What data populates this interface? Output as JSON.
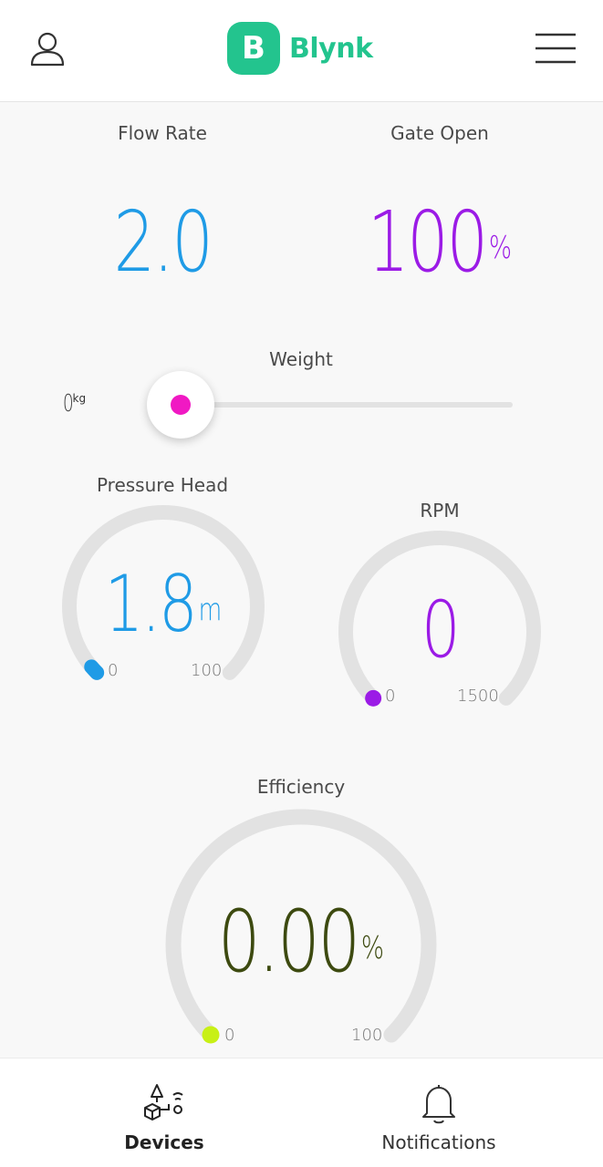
{
  "header": {
    "brand_letter": "B",
    "brand_name": "Blynk",
    "brand_color": "#23c48e",
    "profile_icon": "user-icon",
    "menu_icon": "hamburger-menu-icon"
  },
  "widgets": {
    "flow_rate": {
      "title": "Flow Rate",
      "value": "2.0",
      "color": "#1f9be6"
    },
    "gate_open": {
      "title": "Gate Open",
      "value": "100",
      "unit": "%",
      "color": "#9b1be6"
    },
    "weight": {
      "title": "Weight",
      "value": "0",
      "unit": "kg",
      "min": 0,
      "fraction": 0,
      "color": "#f019c3"
    },
    "pressure_head": {
      "title": "Pressure Head",
      "value": "1.8",
      "unit": "m",
      "min": "0",
      "max": "100",
      "fraction": 0.018,
      "color": "#1f9be6"
    },
    "rpm": {
      "title": "RPM",
      "value": "0",
      "unit": "",
      "min": "0",
      "max": "1500",
      "fraction": 0,
      "color": "#9b1be6"
    },
    "efficiency": {
      "title": "Efficiency",
      "value": "0.00",
      "unit": "%",
      "min": "0",
      "max": "100",
      "fraction": 0,
      "color": "#3d4a10",
      "dot_color": "#c8f016"
    }
  },
  "tabs": [
    {
      "label": "Devices",
      "icon": "devices-icon",
      "active": true
    },
    {
      "label": "Notifications",
      "icon": "bell-icon",
      "active": false
    }
  ]
}
